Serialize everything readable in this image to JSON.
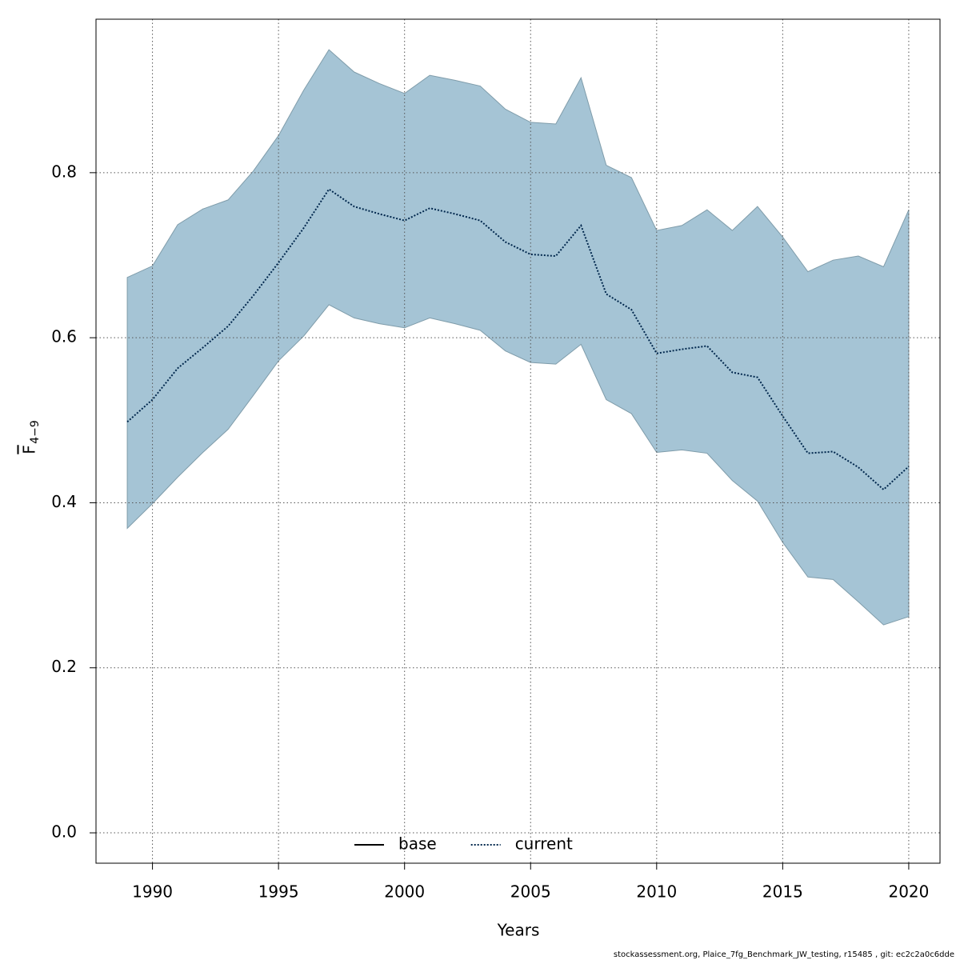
{
  "chart_data": {
    "type": "line",
    "xlabel": "Years",
    "ylabel": "F",
    "ylabel_sub": "4−9",
    "footer": "stockassessment.org, Plaice_7fg_Benchmark_JW_testing, r15485 , git: ec2c2a0c6dde",
    "x": [
      1989,
      1990,
      1991,
      1992,
      1993,
      1994,
      1995,
      1996,
      1997,
      1998,
      1999,
      2000,
      2001,
      2002,
      2003,
      2004,
      2005,
      2006,
      2007,
      2008,
      2009,
      2010,
      2011,
      2012,
      2013,
      2014,
      2015,
      2016,
      2017,
      2018,
      2019,
      2020
    ],
    "series": [
      {
        "name": "current",
        "color": "#00274d",
        "dash": "dotted",
        "values": [
          0.498,
          0.525,
          0.563,
          0.588,
          0.614,
          0.651,
          0.691,
          0.733,
          0.78,
          0.759,
          0.75,
          0.742,
          0.757,
          0.75,
          0.742,
          0.716,
          0.701,
          0.699,
          0.736,
          0.653,
          0.634,
          0.581,
          0.586,
          0.59,
          0.558,
          0.552,
          0.505,
          0.46,
          0.462,
          0.443,
          0.416,
          0.444
        ]
      }
    ],
    "band": {
      "color": "#a5c4d5",
      "upper": [
        0.673,
        0.687,
        0.737,
        0.756,
        0.767,
        0.802,
        0.845,
        0.9,
        0.949,
        0.922,
        0.908,
        0.896,
        0.918,
        0.912,
        0.905,
        0.877,
        0.861,
        0.859,
        0.915,
        0.809,
        0.794,
        0.73,
        0.736,
        0.755,
        0.73,
        0.759,
        0.722,
        0.68,
        0.694,
        0.699,
        0.686,
        0.755
      ],
      "lower": [
        0.369,
        0.399,
        0.431,
        0.461,
        0.489,
        0.53,
        0.572,
        0.602,
        0.64,
        0.624,
        0.617,
        0.612,
        0.624,
        0.617,
        0.609,
        0.584,
        0.57,
        0.568,
        0.592,
        0.525,
        0.508,
        0.461,
        0.464,
        0.46,
        0.427,
        0.402,
        0.352,
        0.31,
        0.307,
        0.28,
        0.252,
        0.262
      ]
    },
    "legend": [
      {
        "name": "base",
        "color": "#000000",
        "dash": "solid"
      },
      {
        "name": "current",
        "color": "#00274d",
        "dash": "dotted"
      }
    ],
    "legend_position": "bottom",
    "xlim": [
      1987.76,
      2021.24
    ],
    "ylim": [
      -0.0368,
      0.986
    ],
    "xticks": [
      1990,
      1995,
      2000,
      2005,
      2010,
      2015,
      2020
    ],
    "yticks": [
      {
        "value": 0,
        "label": "0.0"
      },
      0.2,
      0.4,
      0.6,
      0.8
    ],
    "grid": true
  }
}
